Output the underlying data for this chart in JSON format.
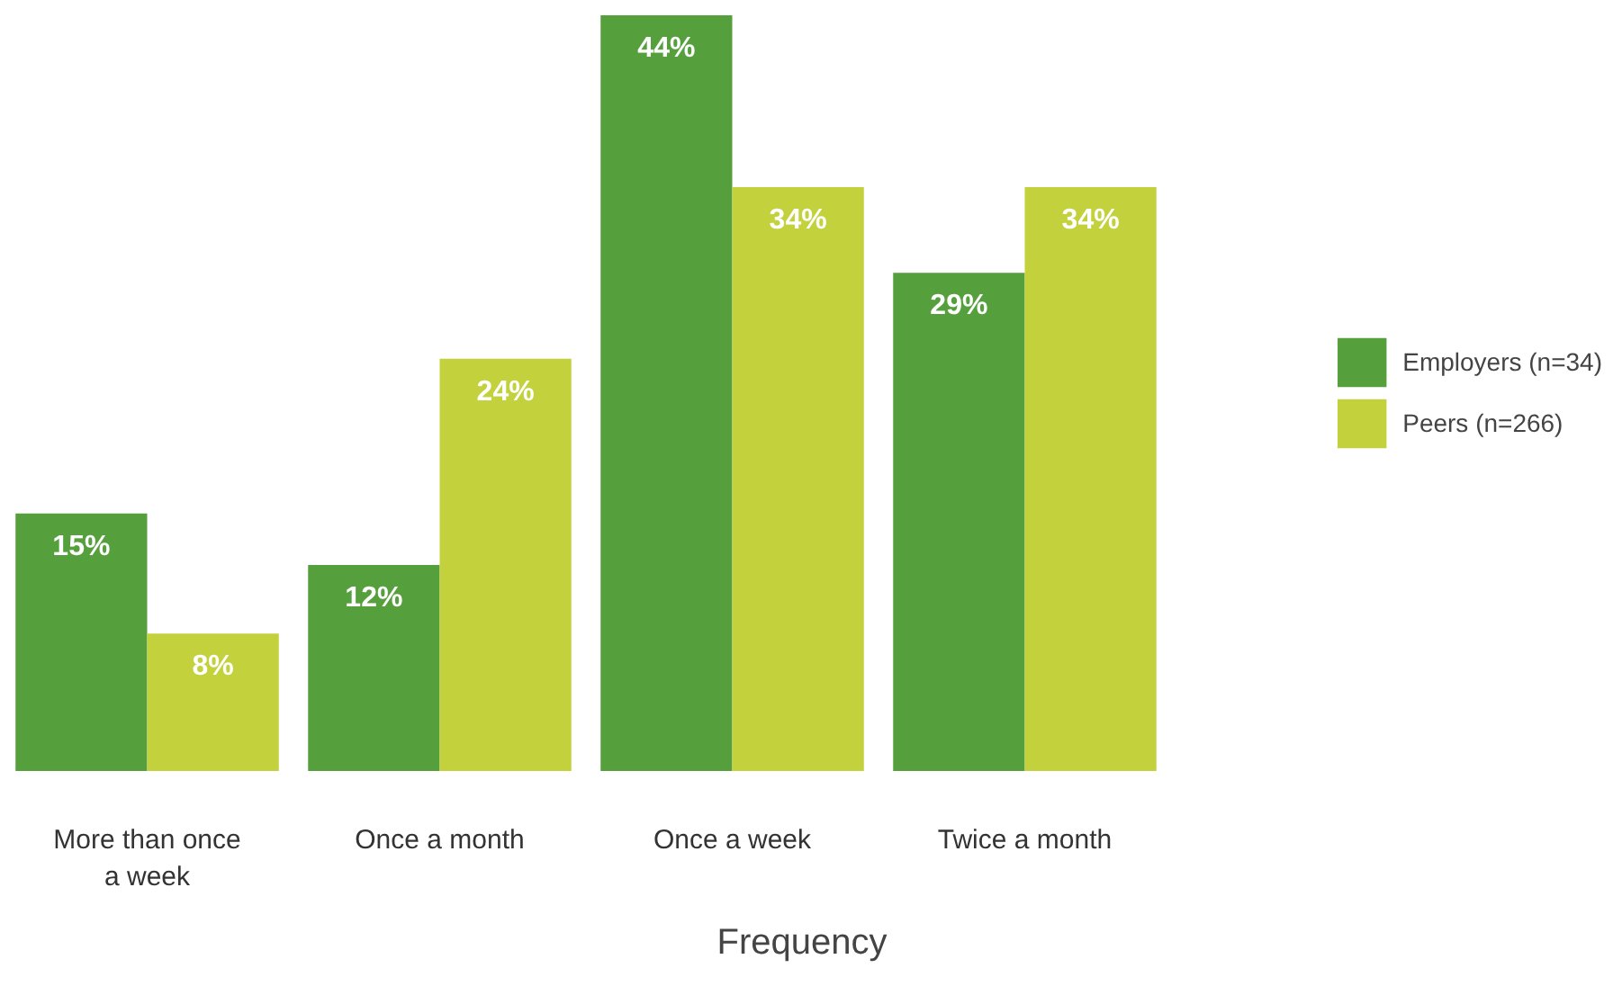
{
  "chart_data": {
    "type": "bar",
    "xlabel": "Frequency",
    "categories": [
      "More than once a week",
      "Once a month",
      "Once a week",
      "Twice a month"
    ],
    "series": [
      {
        "name": "Employers (n=34)",
        "color": "#55a03c",
        "values": [
          15,
          12,
          44,
          29
        ],
        "value_labels": [
          "15%",
          "12%",
          "44%",
          "29%"
        ]
      },
      {
        "name": "Peers (n=266)",
        "color": "#c3d13c",
        "values": [
          8,
          24,
          34,
          34
        ],
        "value_labels": [
          "8%",
          "24%",
          "34%",
          "34%"
        ]
      }
    ],
    "grid": false,
    "legend": "right"
  }
}
